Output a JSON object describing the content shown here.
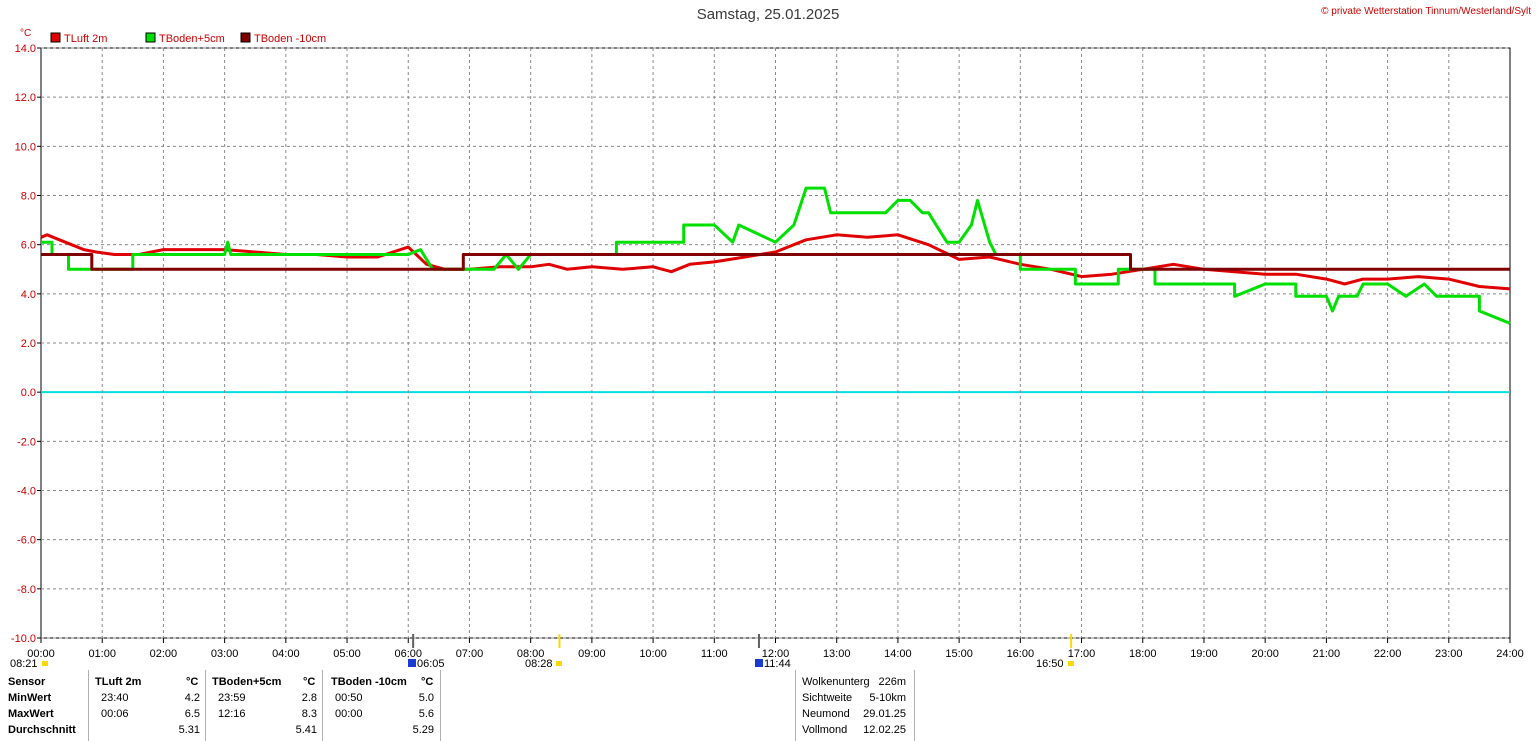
{
  "title": "Samstag, 25.01.2025",
  "copyright": "© private Wetterstation Tinnum/Westerland/Sylt",
  "chart_data": {
    "type": "line",
    "y_unit": "°C",
    "ylim": [
      -10,
      14
    ],
    "y_ticks": [
      "14.0",
      "12.0",
      "10.0",
      "8.0",
      "6.0",
      "4.0",
      "2.0",
      "0.0",
      "-2.0",
      "-4.0",
      "-6.0",
      "-8.0",
      "-10.0"
    ],
    "xlim": [
      0,
      24
    ],
    "x_ticks": [
      "00:00",
      "01:00",
      "02:00",
      "03:00",
      "04:00",
      "05:00",
      "06:00",
      "07:00",
      "08:00",
      "09:00",
      "10:00",
      "11:00",
      "12:00",
      "13:00",
      "14:00",
      "15:00",
      "16:00",
      "17:00",
      "18:00",
      "19:00",
      "20:00",
      "21:00",
      "22:00",
      "23:00",
      "24:00"
    ],
    "grid": true,
    "legend_position": "top-left",
    "zero_line_color": "#00e0e0",
    "series": [
      {
        "name": "TLuft 2m",
        "color": "#e00000",
        "x": [
          0,
          0.1,
          0.3,
          0.5,
          0.7,
          0.9,
          1.2,
          1.6,
          2.0,
          2.5,
          3.0,
          3.5,
          4.0,
          4.5,
          5.0,
          5.5,
          6.0,
          6.3,
          6.6,
          7.0,
          7.5,
          8.0,
          8.3,
          8.6,
          9.0,
          9.5,
          10.0,
          10.3,
          10.6,
          11.0,
          11.5,
          12.0,
          12.5,
          13.0,
          13.5,
          14.0,
          14.5,
          15.0,
          15.5,
          16.0,
          16.5,
          17.0,
          17.5,
          18.0,
          18.5,
          19.0,
          19.5,
          20.0,
          20.5,
          21.0,
          21.3,
          21.6,
          22.0,
          22.5,
          23.0,
          23.5,
          24.0
        ],
        "y": [
          6.3,
          6.4,
          6.2,
          6.0,
          5.8,
          5.7,
          5.6,
          5.6,
          5.8,
          5.8,
          5.8,
          5.7,
          5.6,
          5.6,
          5.5,
          5.5,
          5.9,
          5.2,
          5.0,
          5.0,
          5.1,
          5.1,
          5.2,
          5.0,
          5.1,
          5.0,
          5.1,
          4.9,
          5.2,
          5.3,
          5.5,
          5.7,
          6.2,
          6.4,
          6.3,
          6.4,
          6.0,
          5.4,
          5.5,
          5.2,
          5.0,
          4.7,
          4.8,
          5.0,
          5.2,
          5.0,
          4.9,
          4.8,
          4.8,
          4.6,
          4.4,
          4.6,
          4.6,
          4.7,
          4.6,
          4.3,
          4.2
        ]
      },
      {
        "name": "TBoden+5cm",
        "color": "#00e000",
        "x": [
          0,
          0.18,
          0.18,
          0.45,
          0.45,
          1.5,
          1.5,
          3.0,
          3.05,
          3.1,
          5.0,
          5.5,
          6.0,
          6.2,
          6.4,
          6.6,
          7.0,
          7.4,
          7.6,
          7.8,
          8.0,
          9.4,
          9.4,
          10.5,
          10.5,
          11.0,
          11.3,
          11.4,
          12.0,
          12.3,
          12.5,
          12.8,
          12.9,
          13.8,
          14.0,
          14.2,
          14.4,
          14.5,
          14.8,
          15.0,
          15.2,
          15.3,
          15.5,
          15.6,
          16.0,
          16.0,
          16.5,
          16.9,
          16.9,
          17.6,
          17.6,
          18.2,
          18.2,
          19.0,
          19.5,
          19.5,
          20.0,
          20.5,
          20.5,
          21.0,
          21.1,
          21.2,
          21.5,
          21.6,
          22.0,
          22.3,
          22.6,
          22.8,
          23.0,
          23.5,
          23.5,
          24.0
        ],
        "y": [
          6.1,
          6.1,
          5.6,
          5.6,
          5.0,
          5.0,
          5.6,
          5.6,
          6.1,
          5.6,
          5.6,
          5.6,
          5.6,
          5.8,
          5.0,
          5.0,
          5.0,
          5.0,
          5.6,
          5.0,
          5.6,
          5.6,
          6.1,
          6.1,
          6.8,
          6.8,
          6.1,
          6.8,
          6.1,
          6.8,
          8.3,
          8.3,
          7.3,
          7.3,
          7.8,
          7.8,
          7.3,
          7.3,
          6.1,
          6.1,
          6.8,
          7.8,
          6.1,
          5.6,
          5.6,
          5.0,
          5.0,
          5.0,
          4.4,
          4.4,
          5.0,
          5.0,
          4.4,
          4.4,
          4.4,
          3.9,
          4.4,
          4.4,
          3.9,
          3.9,
          3.3,
          3.9,
          3.9,
          4.4,
          4.4,
          3.9,
          4.4,
          3.9,
          3.9,
          3.9,
          3.3,
          2.8
        ]
      },
      {
        "name": "TBoden -10cm",
        "color": "#800000",
        "x": [
          0,
          0.83,
          0.83,
          6.9,
          6.9,
          17.8,
          17.8,
          24.0
        ],
        "y": [
          5.6,
          5.6,
          5.0,
          5.0,
          5.6,
          5.6,
          5.0,
          5.0
        ]
      }
    ]
  },
  "astro": {
    "sun_rise_label": "08:21",
    "moon_set_label": "06:05",
    "sun_time_08_28": "08:28",
    "moon_time_11_44": "11:44",
    "sun_set_label": "16:50"
  },
  "stats": {
    "sensor_header": "Sensor",
    "row_labels": [
      "MinWert",
      "MaxWert",
      "Durchschnitt"
    ],
    "columns": [
      {
        "name": "TLuft 2m",
        "unit": "°C",
        "min_time": "23:40",
        "min": "4.2",
        "max_time": "00:06",
        "max": "6.5",
        "avg": "5.31"
      },
      {
        "name": "TBoden+5cm",
        "unit": "°C",
        "min_time": "23:59",
        "min": "2.8",
        "max_time": "12:16",
        "max": "8.3",
        "avg": "5.41"
      },
      {
        "name": "TBoden -10cm",
        "unit": "°C",
        "min_time": "00:50",
        "min": "5.0",
        "max_time": "00:00",
        "max": "5.6",
        "avg": "5.29"
      }
    ],
    "extra": [
      {
        "label": "Wolkenunterg",
        "value": "226m"
      },
      {
        "label": "Sichtweite",
        "value": "5-10km"
      },
      {
        "label": "Neumond",
        "value": "29.01.25"
      },
      {
        "label": "Vollmond",
        "value": "12.02.25"
      }
    ]
  }
}
